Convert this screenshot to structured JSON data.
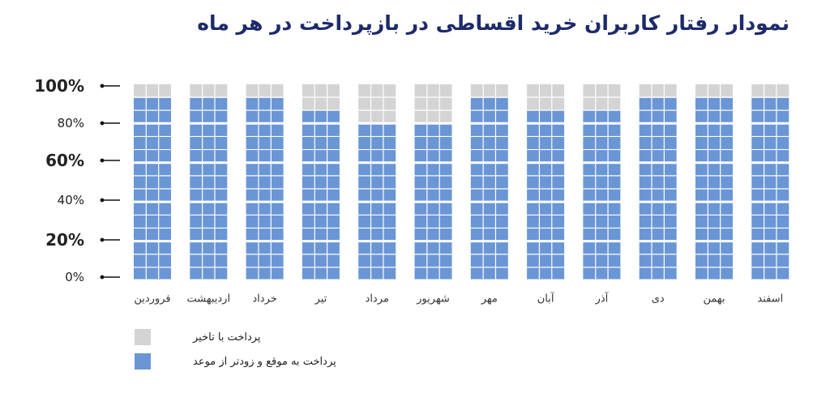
{
  "chart_data": {
    "type": "bar",
    "title": "نمودار رفتار کاربران خرید اقساطی در بازپرداخت در هر ماه",
    "y_ticks": [
      "0%",
      "20%",
      "40%",
      "60%",
      "80%",
      "100%"
    ],
    "ylim": [
      0,
      100
    ],
    "categories": [
      "فروردین",
      "اردیبهشت",
      "خرداد",
      "تیر",
      "مرداد",
      "شهریور",
      "مهر",
      "آبان",
      "آذر",
      "دی",
      "بهمن",
      "اسفند"
    ],
    "series": [
      {
        "name": "پرداخت به موقع و زودتر از موعد",
        "color": "#6a96d6",
        "values": [
          93,
          93,
          93,
          87,
          80,
          80,
          93,
          87,
          87,
          93,
          93,
          93
        ]
      },
      {
        "name": "پرداخت با تاخیر",
        "color": "#d4d4d4",
        "values": [
          7,
          7,
          7,
          13,
          20,
          20,
          7,
          13,
          13,
          7,
          7,
          7
        ]
      }
    ],
    "grid": false,
    "legend_position": "bottom-left"
  }
}
